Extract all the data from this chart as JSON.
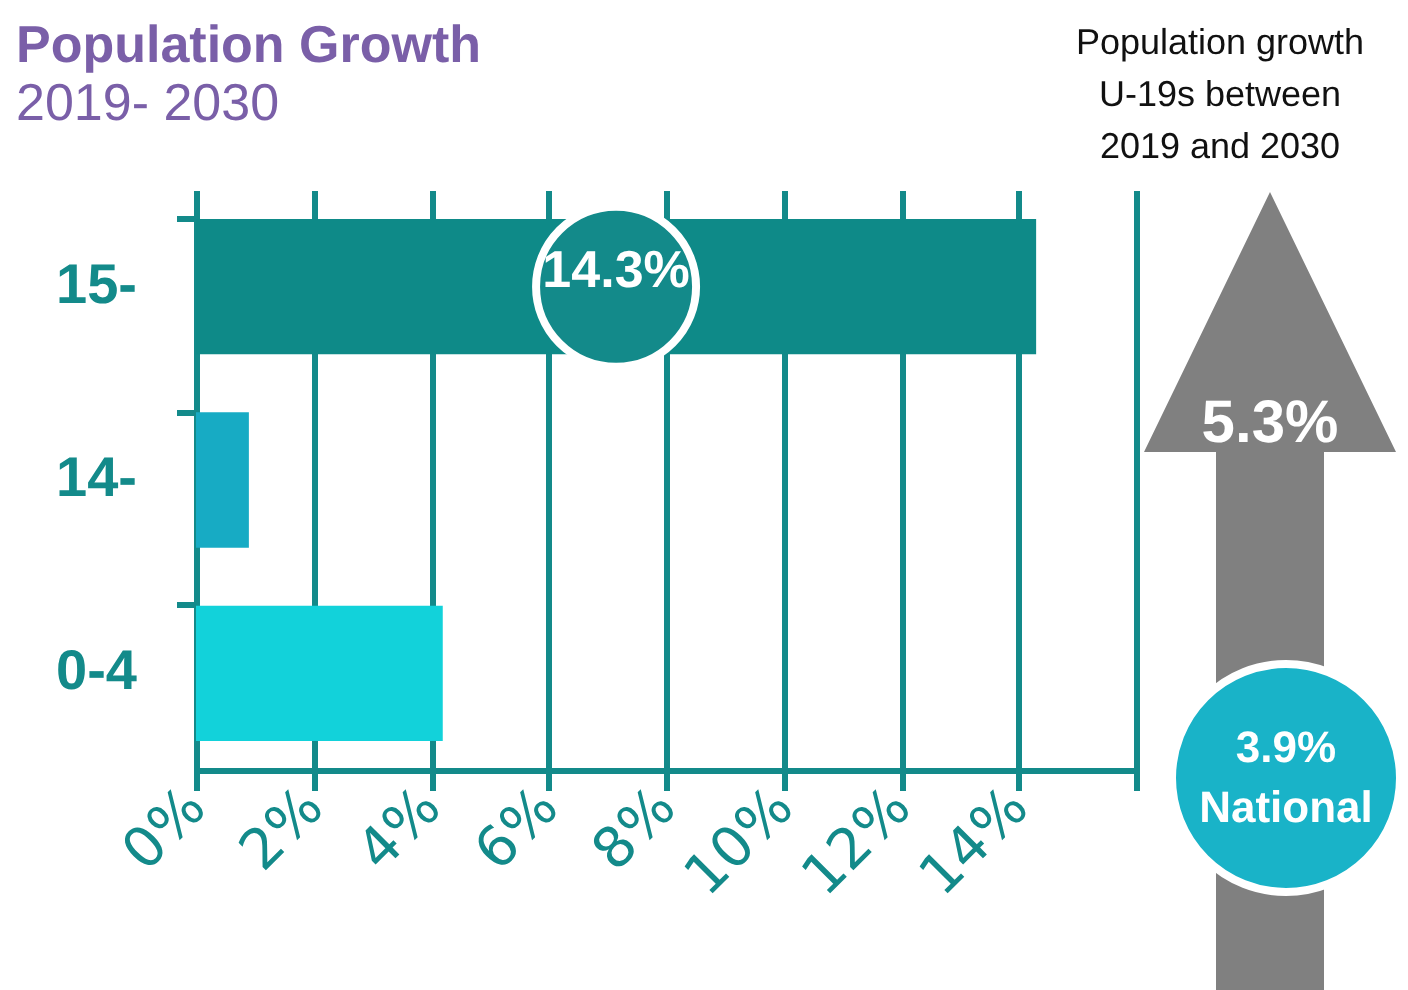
{
  "chart_data": {
    "type": "bar",
    "orientation": "horizontal",
    "title": "Population Growth",
    "subtitle": "2019- 2030",
    "categories": [
      "15-",
      "14-",
      "0-4"
    ],
    "values": [
      14.3,
      0.9,
      4.2
    ],
    "colors": [
      "#0e8a88",
      "#17abc4",
      "#12d2da"
    ],
    "value_labels": [
      "14.3%",
      null,
      null
    ],
    "xlim": [
      0,
      16
    ],
    "xticks": [
      {
        "value": 0,
        "label": "0%"
      },
      {
        "value": 2,
        "label": "2%"
      },
      {
        "value": 4,
        "label": "4%"
      },
      {
        "value": 6,
        "label": "6%"
      },
      {
        "value": 8,
        "label": "8%"
      },
      {
        "value": 10,
        "label": "10%"
      },
      {
        "value": 12,
        "label": "12%"
      },
      {
        "value": 14,
        "label": "14%"
      },
      {
        "value": 16,
        "label": null
      }
    ],
    "grid": "x",
    "annotations": [
      "Population growth U-19s between 2019 and 2030",
      "5.3%",
      "3.9%",
      "National"
    ]
  }
}
